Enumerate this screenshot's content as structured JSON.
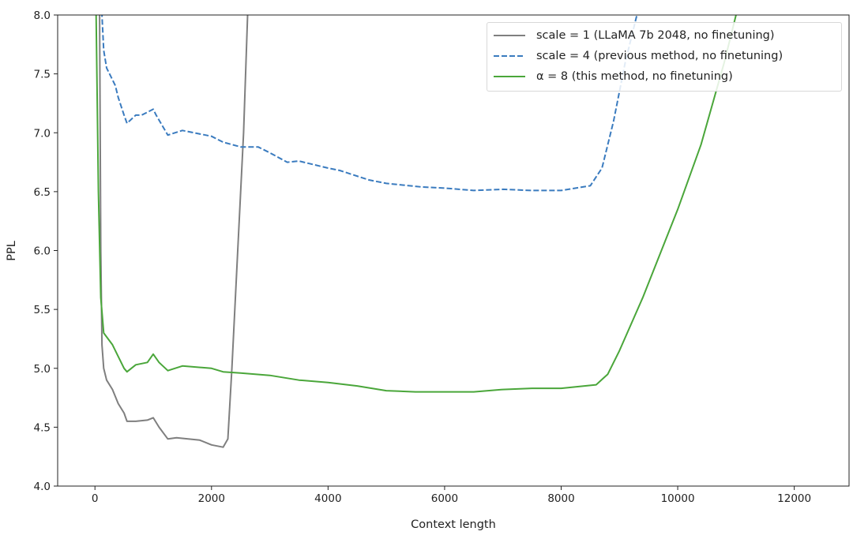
{
  "chart_data": {
    "type": "line",
    "title": "",
    "xlabel": "Context length",
    "ylabel": "PPL",
    "xlim": [
      -640,
      12940
    ],
    "ylim": [
      4.0,
      8.0
    ],
    "xticks": [
      0,
      2000,
      4000,
      6000,
      8000,
      10000,
      12000
    ],
    "xtick_labels": [
      "0",
      "2000",
      "4000",
      "6000",
      "8000",
      "10000",
      "12000"
    ],
    "yticks": [
      4.0,
      4.5,
      5.0,
      5.5,
      6.0,
      6.5,
      7.0,
      7.5,
      8.0
    ],
    "ytick_labels": [
      "4.0",
      "4.5",
      "5.0",
      "5.5",
      "6.0",
      "6.5",
      "7.0",
      "7.5",
      "8.0"
    ],
    "grid": false,
    "legend_position": "top-right",
    "series": [
      {
        "name": "scale = 1 (LLaMA 7b 2048, no finetuning)",
        "color": "#7f7f7f",
        "style": "solid",
        "x": [
          60,
          80,
          100,
          120,
          150,
          200,
          300,
          400,
          500,
          550,
          700,
          900,
          1000,
          1100,
          1250,
          1400,
          1800,
          2000,
          2200,
          2280,
          2350,
          2450,
          2550,
          2620,
          2660
        ],
        "y": [
          9,
          8.0,
          6.0,
          5.2,
          5.0,
          4.9,
          4.82,
          4.7,
          4.62,
          4.55,
          4.55,
          4.56,
          4.58,
          4.5,
          4.4,
          4.41,
          4.39,
          4.35,
          4.33,
          4.4,
          5.0,
          6.0,
          7.0,
          8.0,
          8.3
        ]
      },
      {
        "name": "scale = 4 (previous method, no finetuning)",
        "color": "#3a7bbf",
        "style": "dashed",
        "x": [
          110,
          120,
          150,
          200,
          300,
          350,
          400,
          500,
          550,
          700,
          800,
          1000,
          1050,
          1250,
          1500,
          2000,
          2200,
          2500,
          2800,
          3000,
          3300,
          3500,
          4000,
          4200,
          4700,
          5000,
          5600,
          6000,
          6500,
          7000,
          7500,
          8000,
          8500,
          8700,
          8900,
          9100,
          9300,
          9350
        ],
        "y": [
          8.5,
          8.0,
          7.7,
          7.55,
          7.45,
          7.4,
          7.3,
          7.15,
          7.08,
          7.15,
          7.15,
          7.2,
          7.15,
          6.98,
          7.02,
          6.97,
          6.92,
          6.88,
          6.88,
          6.83,
          6.75,
          6.76,
          6.7,
          6.68,
          6.6,
          6.57,
          6.54,
          6.53,
          6.51,
          6.52,
          6.51,
          6.51,
          6.55,
          6.7,
          7.1,
          7.6,
          8.0,
          8.1
        ]
      },
      {
        "name": "α = 8 (this method, no finetuning)",
        "color": "#4aa63a",
        "style": "solid",
        "x": [
          10,
          20,
          60,
          100,
          150,
          300,
          400,
          500,
          550,
          700,
          900,
          1000,
          1100,
          1250,
          1500,
          2000,
          2200,
          2500,
          3000,
          3500,
          4000,
          4500,
          5000,
          5500,
          6000,
          6500,
          7000,
          7500,
          8000,
          8600,
          8800,
          9000,
          9400,
          9800,
          10000,
          10400,
          10800,
          11000,
          11050
        ],
        "y": [
          9,
          8.0,
          6.5,
          5.6,
          5.3,
          5.2,
          5.1,
          5.0,
          4.97,
          5.03,
          5.05,
          5.12,
          5.05,
          4.98,
          5.02,
          5.0,
          4.97,
          4.96,
          4.94,
          4.9,
          4.88,
          4.85,
          4.81,
          4.8,
          4.8,
          4.8,
          4.82,
          4.83,
          4.83,
          4.86,
          4.95,
          5.15,
          5.6,
          6.1,
          6.35,
          6.9,
          7.6,
          8.0,
          8.1
        ]
      }
    ]
  }
}
